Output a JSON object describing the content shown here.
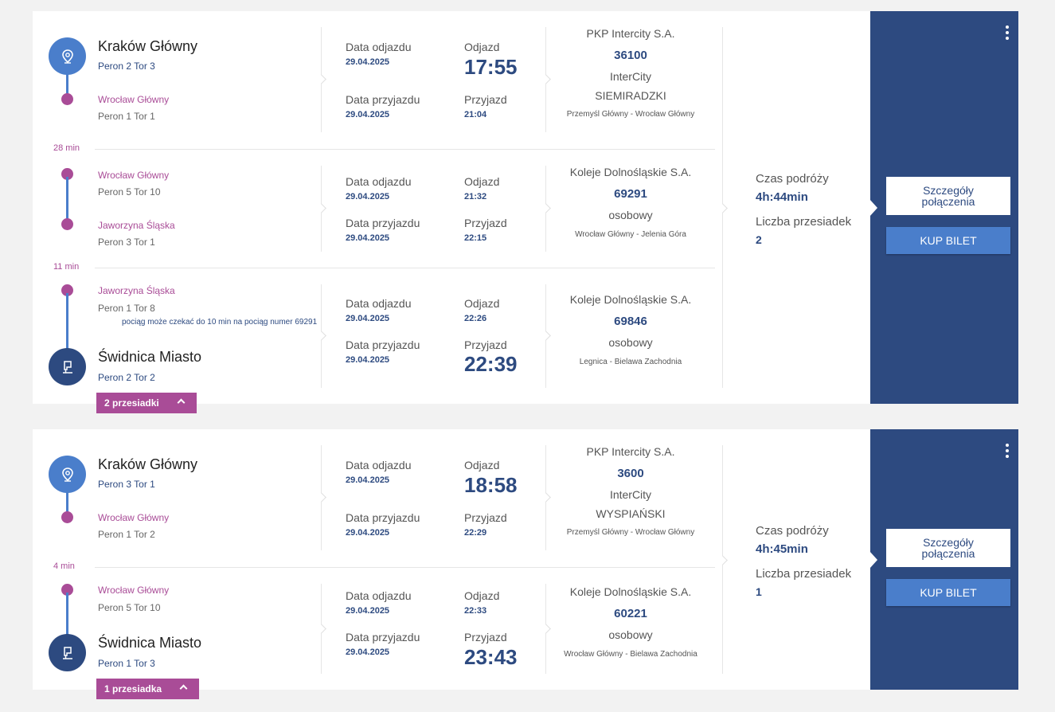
{
  "connections": [
    {
      "summary": {
        "travel_time_label": "Czas podróży",
        "travel_time": "4h:44min",
        "transfers_label": "Liczba przesiadek",
        "transfers": "2"
      },
      "details_button": "Szczegóły połączenia",
      "buy_button": "KUP BILET",
      "transfers_badge": "2 przesiadki",
      "legs": [
        {
          "from": "Kraków Główny",
          "from_platform": "Peron 2 Tor 3",
          "to": "Wrocław Główny",
          "to_platform": "Peron 1 Tor 1",
          "dep_date_label": "Data odjazdu",
          "dep_date": "29.04.2025",
          "dep_label": "Odjazd",
          "dep_time": "17:55",
          "arr_date_label": "Data przyjazdu",
          "arr_date": "29.04.2025",
          "arr_label": "Przyjazd",
          "arr_time": "21:04",
          "carrier": "PKP Intercity S.A.",
          "number": "36100",
          "category": "InterCity",
          "train_name": "SIEMIRADZKI",
          "route": "Przemyśl Główny - Wrocław Główny"
        },
        {
          "wait": "28 min",
          "from": "Wrocław Główny",
          "from_platform": "Peron 5 Tor 10",
          "to": "Jaworzyna Śląska",
          "to_platform": "Peron 3 Tor 1",
          "dep_date_label": "Data odjazdu",
          "dep_date": "29.04.2025",
          "dep_label": "Odjazd",
          "dep_time": "21:32",
          "arr_date_label": "Data przyjazdu",
          "arr_date": "29.04.2025",
          "arr_label": "Przyjazd",
          "arr_time": "22:15",
          "carrier": "Koleje Dolnośląskie S.A.",
          "number": "69291",
          "category": "osobowy",
          "route": "Wrocław Główny - Jelenia Góra"
        },
        {
          "wait": "11 min",
          "from": "Jaworzyna Śląska",
          "from_platform": "Peron 1 Tor 8",
          "note": "pociąg może czekać do 10 min na pociąg numer 69291",
          "to": "Świdnica Miasto",
          "to_platform": "Peron 2 Tor 2",
          "dep_date_label": "Data odjazdu",
          "dep_date": "29.04.2025",
          "dep_label": "Odjazd",
          "dep_time": "22:26",
          "arr_date_label": "Data przyjazdu",
          "arr_date": "29.04.2025",
          "arr_label": "Przyjazd",
          "arr_time": "22:39",
          "carrier": "Koleje Dolnośląskie S.A.",
          "number": "69846",
          "category": "osobowy",
          "route": "Legnica - Bielawa Zachodnia"
        }
      ]
    },
    {
      "summary": {
        "travel_time_label": "Czas podróży",
        "travel_time": "4h:45min",
        "transfers_label": "Liczba przesiadek",
        "transfers": "1"
      },
      "details_button": "Szczegóły połączenia",
      "buy_button": "KUP BILET",
      "transfers_badge": "1 przesiadka",
      "legs": [
        {
          "from": "Kraków Główny",
          "from_platform": "Peron 3 Tor 1",
          "to": "Wrocław Główny",
          "to_platform": "Peron 1 Tor 2",
          "dep_date_label": "Data odjazdu",
          "dep_date": "29.04.2025",
          "dep_label": "Odjazd",
          "dep_time": "18:58",
          "arr_date_label": "Data przyjazdu",
          "arr_date": "29.04.2025",
          "arr_label": "Przyjazd",
          "arr_time": "22:29",
          "carrier": "PKP Intercity S.A.",
          "number": "3600",
          "category": "InterCity",
          "train_name": "WYSPIAŃSKI",
          "route": "Przemyśl Główny - Wrocław Główny"
        },
        {
          "wait": "4 min",
          "from": "Wrocław Główny",
          "from_platform": "Peron 5 Tor 10",
          "to": "Świdnica Miasto",
          "to_platform": "Peron 1 Tor 3",
          "dep_date_label": "Data odjazdu",
          "dep_date": "29.04.2025",
          "dep_label": "Odjazd",
          "dep_time": "22:33",
          "arr_date_label": "Data przyjazdu",
          "arr_date": "29.04.2025",
          "arr_label": "Przyjazd",
          "arr_time": "23:43",
          "carrier": "Koleje Dolnośląskie S.A.",
          "number": "60221",
          "category": "osobowy",
          "route": "Wrocław Główny - Bielawa Zachodnia"
        }
      ]
    }
  ]
}
